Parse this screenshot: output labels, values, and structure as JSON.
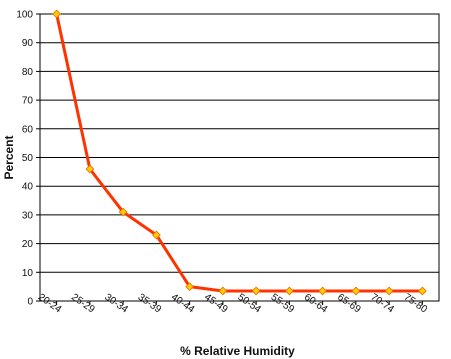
{
  "chart_data": {
    "type": "line",
    "title": "",
    "xlabel": "% Relative Humidity",
    "ylabel": "Percent",
    "categories": [
      "20-24",
      "25-29",
      "30-34",
      "35-39",
      "40-44",
      "45-49",
      "50-54",
      "55-59",
      "60-64",
      "65-69",
      "70-74",
      "75-80"
    ],
    "series": [
      {
        "values": [
          100,
          46,
          31,
          23,
          5,
          3.5,
          3.5,
          3.5,
          3.5,
          3.5,
          3.5,
          3.5
        ]
      }
    ],
    "ylim": [
      0,
      100
    ],
    "yticks": [
      0,
      10,
      20,
      30,
      40,
      50,
      60,
      70,
      80,
      90,
      100
    ],
    "grid": true,
    "legend": "none",
    "colors": {
      "line": "#ff3300",
      "marker": "#ffcc00",
      "grid": "#000000"
    }
  }
}
